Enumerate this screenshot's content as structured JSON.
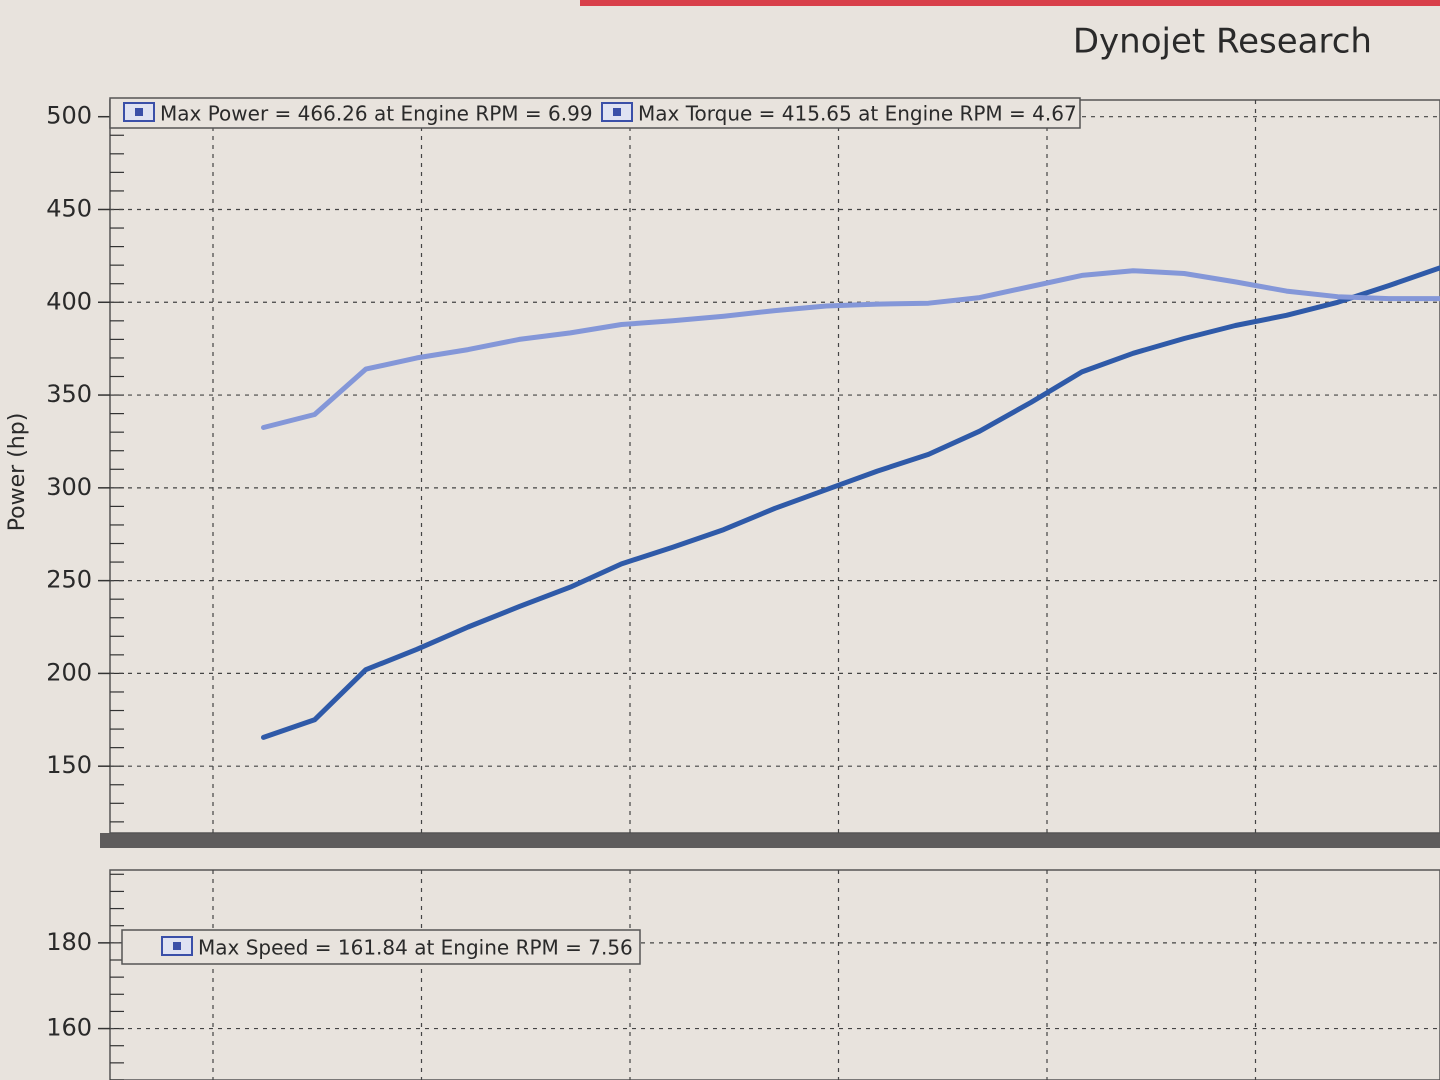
{
  "title": "Dynojet Research",
  "chart_data": [
    {
      "type": "line",
      "y_label": "Power (hp)",
      "annotations": [
        "Max Power = 466.26 at Engine RPM = 6.99",
        "Max Torque = 415.65 at Engine RPM = 4.67"
      ],
      "categories": [
        null,
        null,
        null,
        null,
        null,
        null,
        null,
        null,
        null,
        null,
        null,
        null,
        null,
        null,
        null,
        null,
        null,
        null,
        null,
        null,
        null,
        null,
        null,
        null,
        null,
        null,
        null
      ],
      "series": [
        {
          "color": "#2f5aa8",
          "values": [
            null,
            null,
            null,
            165.5,
            175,
            202,
            213,
            225,
            236,
            246.5,
            259,
            268,
            277.5,
            289,
            299,
            309,
            318,
            330.5,
            346,
            362.5,
            372.5,
            380.5,
            387.5,
            393,
            400,
            409,
            418.5
          ]
        },
        {
          "color": "#8497d8",
          "values": [
            null,
            null,
            null,
            332.5,
            339.5,
            364,
            370,
            374.5,
            380,
            383.5,
            388,
            390,
            392.5,
            395.5,
            398,
            399,
            399.5,
            402.5,
            408.5,
            414.5,
            417,
            415.5,
            411,
            406,
            403,
            402,
            402
          ]
        }
      ],
      "ylim": [
        114,
        509
      ],
      "yticks": [
        150,
        200,
        250,
        300,
        350,
        400,
        450,
        500
      ],
      "grid": true
    },
    {
      "type": "line",
      "annotations": [
        "Max Speed = 161.84 at Engine RPM = 7.56"
      ],
      "ylim": [
        148,
        197
      ],
      "yticks": [
        160,
        180
      ],
      "grid": true
    }
  ]
}
